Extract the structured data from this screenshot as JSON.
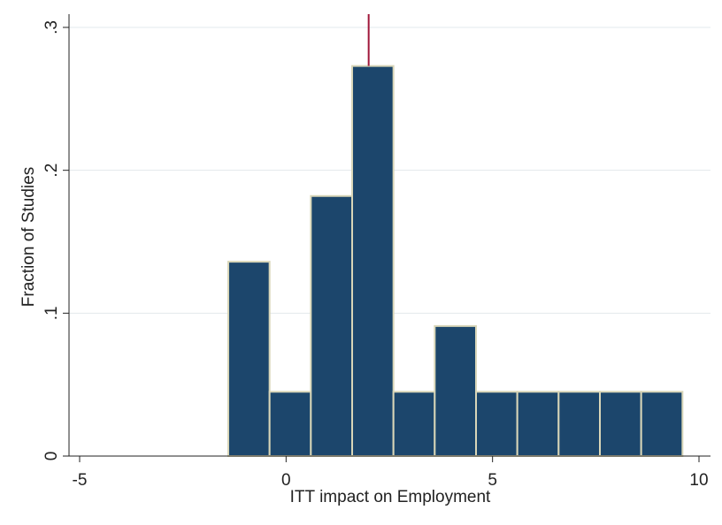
{
  "chart_data": {
    "type": "bar",
    "title": "",
    "xlabel": "ITT impact on Employment",
    "ylabel": "Fraction of Studies",
    "xlim": [
      -5,
      10
    ],
    "ylim": [
      0,
      0.3
    ],
    "x_ticks": [
      -5,
      0,
      5,
      10
    ],
    "x_tick_labels": [
      "-5",
      "0",
      "5",
      "10"
    ],
    "y_ticks": [
      0,
      0.1,
      0.2,
      0.3
    ],
    "y_tick_labels": [
      "0",
      ".1",
      ".2",
      ".3"
    ],
    "grid": true,
    "bin_width": 1,
    "bins": [
      {
        "start": -1.4,
        "end": -0.4,
        "value": 0.136
      },
      {
        "start": -0.4,
        "end": 0.6,
        "value": 0.045
      },
      {
        "start": 0.6,
        "end": 1.6,
        "value": 0.182
      },
      {
        "start": 1.6,
        "end": 2.6,
        "value": 0.273
      },
      {
        "start": 2.6,
        "end": 3.6,
        "value": 0.045
      },
      {
        "start": 3.6,
        "end": 4.6,
        "value": 0.091
      },
      {
        "start": 4.6,
        "end": 5.6,
        "value": 0.045
      },
      {
        "start": 5.6,
        "end": 6.6,
        "value": 0.045
      },
      {
        "start": 6.6,
        "end": 7.6,
        "value": 0.045
      },
      {
        "start": 7.6,
        "end": 8.6,
        "value": 0.045
      },
      {
        "start": 8.6,
        "end": 9.6,
        "value": 0.045
      }
    ],
    "reference_line": {
      "x": 2.0
    },
    "colors": {
      "bar_fill": "#1c466c",
      "bar_edge": "#d9d6b8",
      "reference_line": "#a0173a",
      "grid": "#e3e8ec",
      "axis": "#222222"
    }
  }
}
